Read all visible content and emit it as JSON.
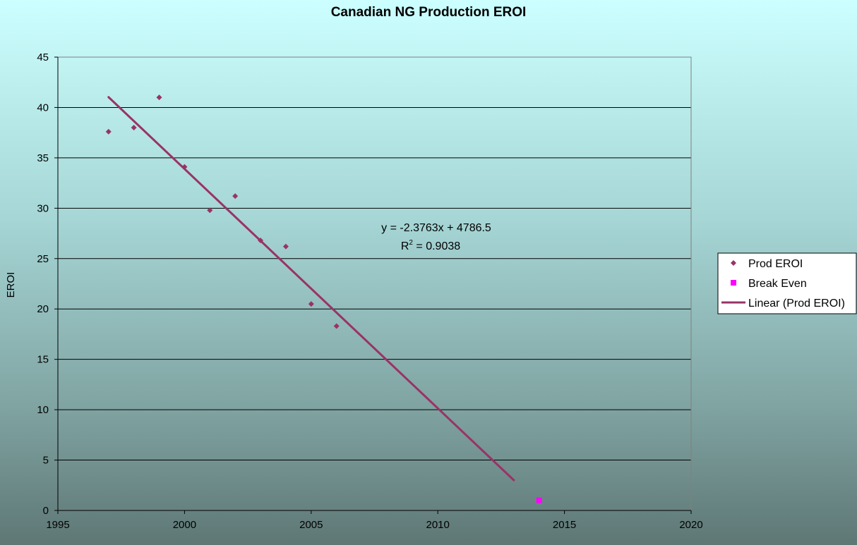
{
  "chart_data": {
    "type": "scatter",
    "title": "Canadian NG Production EROI",
    "xlabel": "",
    "ylabel": "EROI",
    "xlim": [
      1995,
      2020
    ],
    "ylim": [
      0,
      45
    ],
    "xticks": [
      1995,
      2000,
      2005,
      2010,
      2015,
      2020
    ],
    "yticks": [
      0,
      5,
      10,
      15,
      20,
      25,
      30,
      35,
      40,
      45
    ],
    "grid": "horizontal",
    "legend_position": "right",
    "series": [
      {
        "name": "Prod EROI",
        "marker": "diamond",
        "color": "#993366",
        "points": [
          {
            "x": 1997,
            "y": 37.6
          },
          {
            "x": 1998,
            "y": 38.0
          },
          {
            "x": 1999,
            "y": 41.0
          },
          {
            "x": 2000,
            "y": 34.1
          },
          {
            "x": 2001,
            "y": 29.8
          },
          {
            "x": 2002,
            "y": 31.2
          },
          {
            "x": 2003,
            "y": 26.8
          },
          {
            "x": 2004,
            "y": 26.2
          },
          {
            "x": 2005,
            "y": 20.5
          },
          {
            "x": 2006,
            "y": 18.3
          }
        ]
      },
      {
        "name": "Break Even",
        "marker": "square",
        "color": "#ff00ff",
        "points": [
          {
            "x": 2014,
            "y": 1.0
          }
        ]
      },
      {
        "name": "Linear (Prod EROI)",
        "type": "trendline",
        "color": "#993366",
        "slope": -2.3763,
        "intercept": 4786.5,
        "x_range": [
          1997,
          2013
        ]
      }
    ],
    "annotation": {
      "equation": "y = -2.3763x + 4786.5",
      "r2_prefix": "R",
      "r2_sup": "2",
      "r2_suffix": " = 0.9038"
    }
  }
}
